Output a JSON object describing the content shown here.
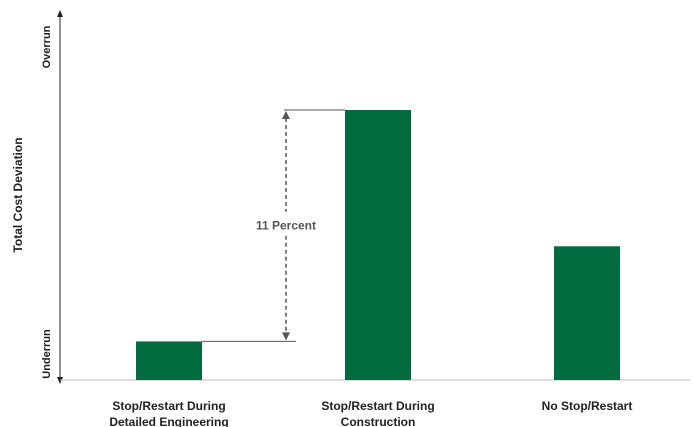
{
  "chart_data": {
    "type": "bar",
    "categories": [
      [
        "Stop/Restart During",
        "Detailed Engineering"
      ],
      [
        "Stop/Restart During",
        "Construction"
      ],
      [
        "No Stop/Restart"
      ]
    ],
    "values": [
      1.5,
      10.5,
      5.2
    ],
    "ylim": [
      0,
      14
    ],
    "ylabel": "Total Cost Deviation",
    "y_end_labels": {
      "bottom": "Underrun",
      "top": "Overrun"
    },
    "y_tick_labels": false,
    "grid": false,
    "bar_color": "#006b3f",
    "annotation": {
      "text": "11 Percent",
      "from_category": 0,
      "to_category": 1
    }
  }
}
